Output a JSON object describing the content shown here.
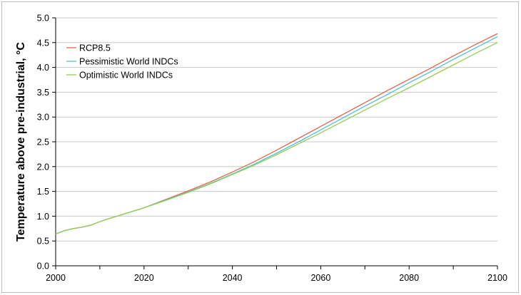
{
  "chart_data": {
    "type": "line",
    "title": "",
    "xlabel": "",
    "ylabel": "Temperature above pre-industrial, °C",
    "xlim": [
      2000,
      2100
    ],
    "ylim": [
      0.0,
      5.0
    ],
    "x_ticks": [
      2000,
      2020,
      2040,
      2060,
      2080,
      2100
    ],
    "x_tick_labels": [
      "2000",
      "2020",
      "2040",
      "2060",
      "2080",
      "2100"
    ],
    "y_ticks": [
      0.0,
      0.5,
      1.0,
      1.5,
      2.0,
      2.5,
      3.0,
      3.5,
      4.0,
      4.5,
      5.0
    ],
    "y_tick_labels": [
      "0.0",
      "0.5",
      "1.0",
      "1.5",
      "2.0",
      "2.5",
      "3.0",
      "3.5",
      "4.0",
      "4.5",
      "5.0"
    ],
    "grid": "horizontal",
    "legend_position": "top-left",
    "series": [
      {
        "name": "RCP8.5",
        "color": "#e8634a",
        "x": [
          2000,
          2002,
          2004,
          2006,
          2008,
          2010,
          2012,
          2015,
          2020,
          2025,
          2030,
          2035,
          2040,
          2045,
          2050,
          2055,
          2060,
          2065,
          2070,
          2075,
          2080,
          2085,
          2090,
          2095,
          2100
        ],
        "y": [
          0.64,
          0.71,
          0.75,
          0.78,
          0.82,
          0.89,
          0.95,
          1.03,
          1.17,
          1.34,
          1.51,
          1.69,
          1.89,
          2.1,
          2.33,
          2.57,
          2.81,
          3.05,
          3.29,
          3.53,
          3.76,
          3.99,
          4.23,
          4.46,
          4.68
        ]
      },
      {
        "name": "Pessimistic World INDCs",
        "color": "#4fbfdc",
        "x": [
          2000,
          2002,
          2004,
          2006,
          2008,
          2010,
          2012,
          2015,
          2020,
          2025,
          2030,
          2035,
          2040,
          2045,
          2050,
          2055,
          2060,
          2065,
          2070,
          2075,
          2080,
          2085,
          2090,
          2095,
          2100
        ],
        "y": [
          0.64,
          0.71,
          0.75,
          0.78,
          0.82,
          0.89,
          0.95,
          1.03,
          1.17,
          1.33,
          1.49,
          1.66,
          1.85,
          2.05,
          2.27,
          2.5,
          2.74,
          2.98,
          3.22,
          3.45,
          3.69,
          3.92,
          4.16,
          4.39,
          4.62
        ]
      },
      {
        "name": "Optimistic World INDCs",
        "color": "#92d050",
        "x": [
          2000,
          2002,
          2004,
          2006,
          2008,
          2010,
          2012,
          2015,
          2020,
          2025,
          2030,
          2035,
          2040,
          2045,
          2050,
          2055,
          2060,
          2065,
          2070,
          2075,
          2080,
          2085,
          2090,
          2095,
          2100
        ],
        "y": [
          0.64,
          0.71,
          0.75,
          0.78,
          0.82,
          0.89,
          0.95,
          1.03,
          1.17,
          1.32,
          1.48,
          1.65,
          1.84,
          2.03,
          2.24,
          2.46,
          2.68,
          2.91,
          3.14,
          3.37,
          3.59,
          3.82,
          4.05,
          4.28,
          4.5
        ]
      }
    ],
    "gridline_color": "#c8c8c8",
    "axis_color": "#000000"
  }
}
